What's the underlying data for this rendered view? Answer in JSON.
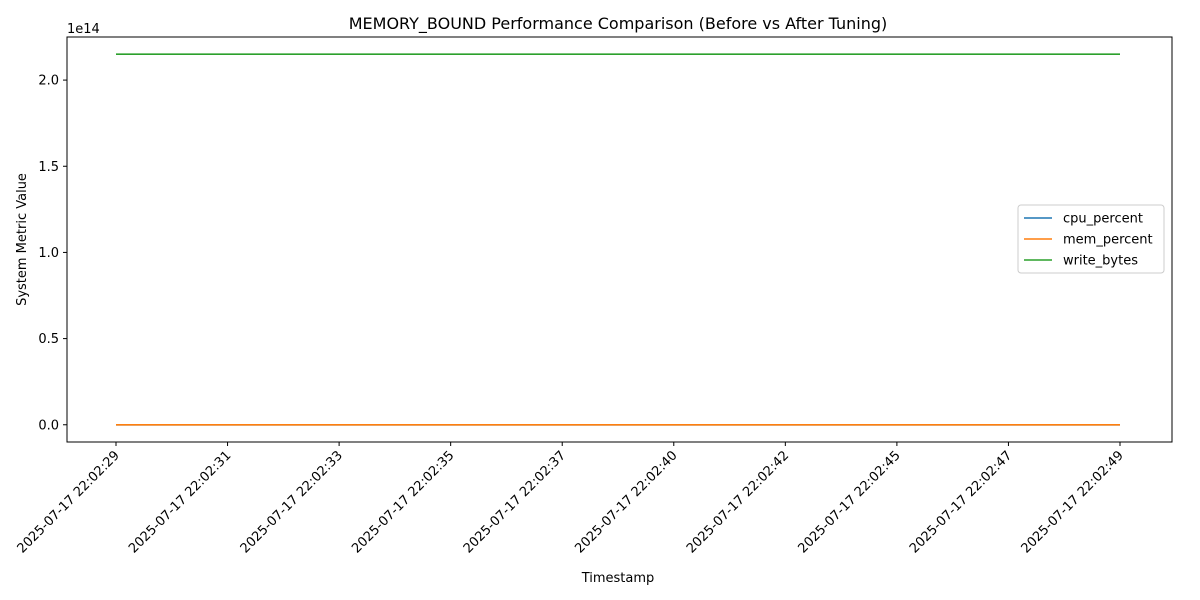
{
  "chart_data": {
    "type": "line",
    "title": "MEMORY_BOUND Performance Comparison (Before vs After Tuning)",
    "xlabel": "Timestamp",
    "ylabel": "System Metric Value",
    "y_offset_label": "1e14",
    "x_ticks": [
      "2025-07-17 22:02:29",
      "2025-07-17 22:02:31",
      "2025-07-17 22:02:33",
      "2025-07-17 22:02:35",
      "2025-07-17 22:02:37",
      "2025-07-17 22:02:40",
      "2025-07-17 22:02:42",
      "2025-07-17 22:02:45",
      "2025-07-17 22:02:47",
      "2025-07-17 22:02:49"
    ],
    "y_ticks": [
      "0.0",
      "0.5",
      "1.0",
      "1.5",
      "2.0"
    ],
    "y_tick_values": [
      0,
      0.5,
      1.0,
      1.5,
      2.0
    ],
    "ylim": [
      -0.1,
      2.25
    ],
    "grid": false,
    "legend_position": "center-right",
    "series": [
      {
        "name": "cpu_percent",
        "color": "#1f77b4",
        "values": [
          0,
          0,
          0,
          0,
          0,
          0,
          0,
          0,
          0,
          0
        ]
      },
      {
        "name": "mem_percent",
        "color": "#ff7f0e",
        "values": [
          0,
          0,
          0,
          0,
          0,
          0,
          0,
          0,
          0,
          0
        ]
      },
      {
        "name": "write_bytes",
        "color": "#2ca02c",
        "values": [
          2.15,
          2.15,
          2.15,
          2.15,
          2.15,
          2.15,
          2.15,
          2.15,
          2.15,
          2.15
        ]
      }
    ]
  }
}
